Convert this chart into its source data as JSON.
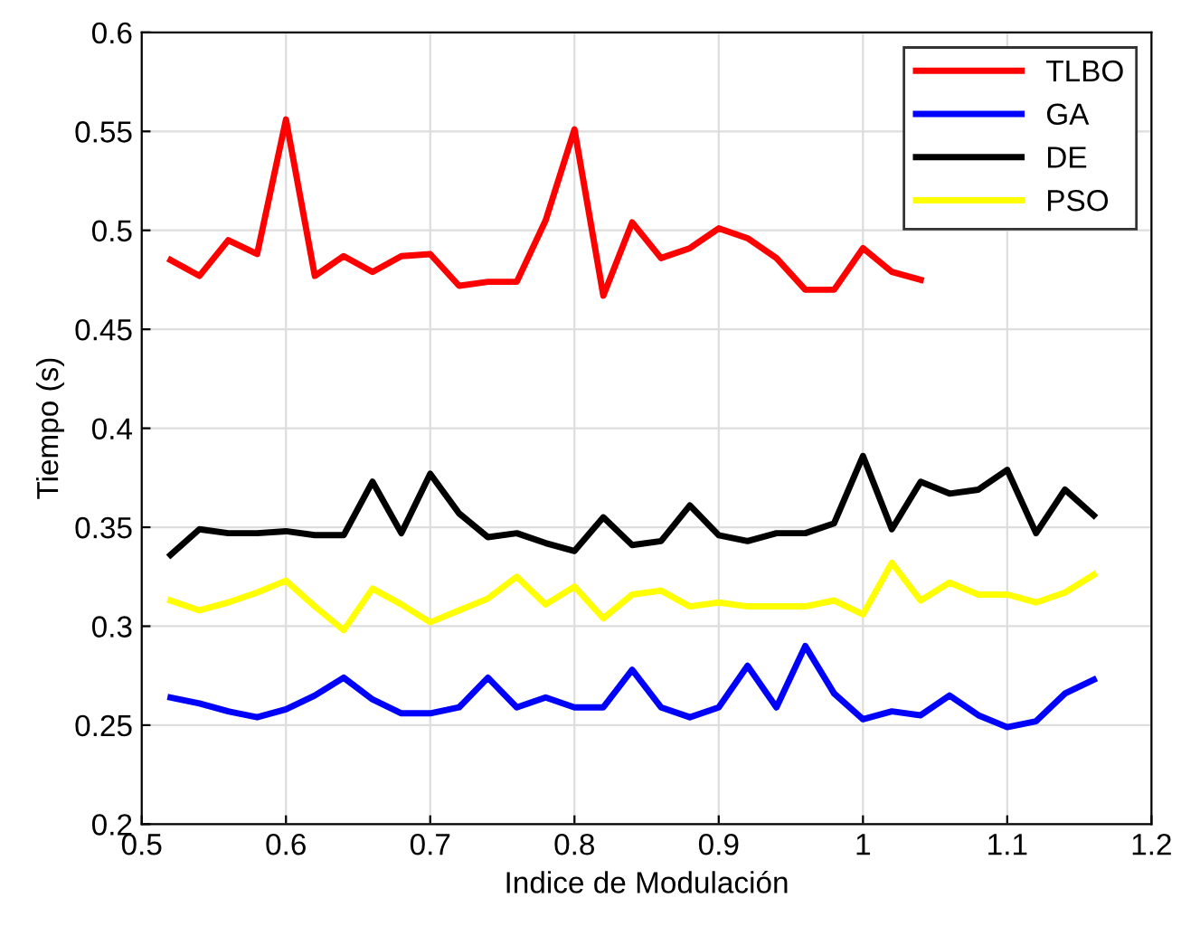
{
  "chart_data": {
    "type": "line",
    "xlabel": "Indice de Modulación",
    "ylabel": "Tiempo (s)",
    "x": [
      0.52,
      0.54,
      0.56,
      0.58,
      0.6,
      0.62,
      0.64,
      0.66,
      0.68,
      0.7,
      0.72,
      0.74,
      0.76,
      0.78,
      0.8,
      0.82,
      0.84,
      0.86,
      0.88,
      0.9,
      0.92,
      0.94,
      0.96,
      0.98,
      1.0,
      1.02,
      1.04,
      1.06,
      1.08,
      1.1,
      1.12,
      1.14,
      1.16
    ],
    "series": [
      {
        "name": "TLBO",
        "color": "#ff0000",
        "values": [
          0.485,
          0.477,
          0.495,
          0.488,
          0.556,
          0.477,
          0.487,
          0.479,
          0.487,
          0.488,
          0.472,
          0.474,
          0.474,
          0.505,
          0.551,
          0.467,
          0.504,
          0.486,
          0.491,
          0.501,
          0.496,
          0.486,
          0.47,
          0.47,
          0.491,
          0.479,
          0.475,
          null,
          null,
          null,
          null,
          null,
          null
        ]
      },
      {
        "name": "GA",
        "color": "#0000ff",
        "values": [
          0.264,
          0.261,
          0.257,
          0.254,
          0.258,
          0.265,
          0.274,
          0.263,
          0.256,
          0.256,
          0.259,
          0.274,
          0.259,
          0.264,
          0.259,
          0.259,
          0.278,
          0.259,
          0.254,
          0.259,
          0.28,
          0.259,
          0.29,
          0.266,
          0.253,
          0.257,
          0.255,
          0.265,
          0.255,
          0.249,
          0.252,
          0.266,
          0.273
        ]
      },
      {
        "name": "DE",
        "color": "#000000",
        "values": [
          0.336,
          0.349,
          0.347,
          0.347,
          0.348,
          0.346,
          0.346,
          0.373,
          0.347,
          0.377,
          0.357,
          0.345,
          0.347,
          0.342,
          0.338,
          0.355,
          0.341,
          0.343,
          0.361,
          0.346,
          0.343,
          0.347,
          0.347,
          0.352,
          0.386,
          0.349,
          0.373,
          0.367,
          0.369,
          0.379,
          0.347,
          0.369,
          0.356
        ]
      },
      {
        "name": "PSO",
        "color": "#ffff00",
        "values": [
          0.313,
          0.308,
          0.312,
          0.317,
          0.323,
          0.31,
          0.298,
          0.319,
          0.311,
          0.302,
          0.308,
          0.314,
          0.325,
          0.311,
          0.32,
          0.304,
          0.316,
          0.318,
          0.31,
          0.312,
          0.31,
          0.31,
          0.31,
          0.313,
          0.306,
          0.332,
          0.313,
          0.322,
          0.316,
          0.316,
          0.312,
          0.317,
          0.326
        ]
      }
    ],
    "xlim": [
      0.5,
      1.2
    ],
    "xticks": [
      0.5,
      0.6,
      0.7,
      0.8,
      0.9,
      1,
      1.1,
      1.2
    ],
    "ylim": [
      0.2,
      0.6
    ],
    "yticks": [
      0.2,
      0.25,
      0.3,
      0.35,
      0.4,
      0.45,
      0.5,
      0.55,
      0.6
    ],
    "grid": true,
    "legend": "top right",
    "marker": "none",
    "line_style": "solid"
  }
}
